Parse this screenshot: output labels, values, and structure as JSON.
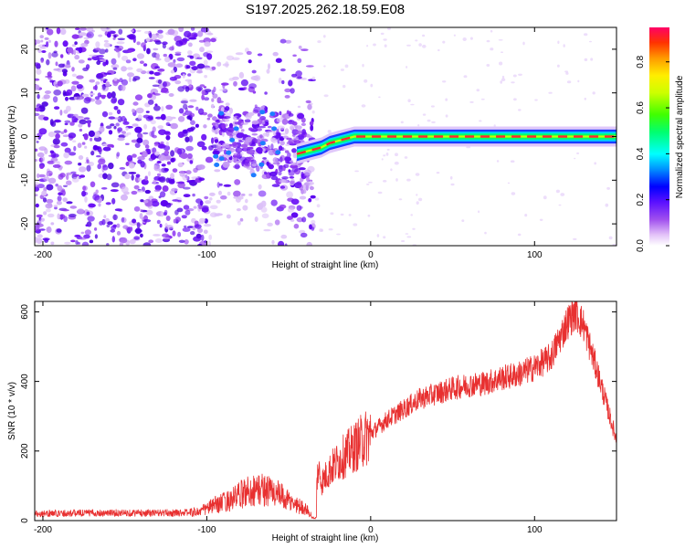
{
  "title": "S197.2025.262.18.59.E08",
  "chart_data": [
    {
      "type": "heatmap",
      "name": "spectrogram",
      "xlabel": "Height of straight line (km)",
      "ylabel": "Frequency (Hz)",
      "xlim": [
        -205,
        150
      ],
      "ylim": [
        -25,
        25
      ],
      "xticks": [
        -200,
        -100,
        0,
        100
      ],
      "yticks": [
        -20,
        -10,
        0,
        10,
        20
      ],
      "colorbar": {
        "label": "Normalized spectral amplitude",
        "range": [
          0,
          0.95
        ],
        "ticks": [
          0.0,
          0.2,
          0.4,
          0.6,
          0.8
        ],
        "colors": [
          "#ffffff",
          "#d9a6f7",
          "#8a2be2",
          "#3b00ff",
          "#0000ff",
          "#00a0ff",
          "#00ffff",
          "#00ff66",
          "#33ff00",
          "#ccff00",
          "#ffff00",
          "#ffaa00",
          "#ff3300",
          "#ff0066"
        ]
      },
      "ridge": {
        "x": [
          -45,
          -40,
          -35,
          -30,
          -25,
          -20,
          -15,
          -10,
          -5,
          0,
          10,
          20,
          40,
          60,
          80,
          100,
          120,
          150
        ],
        "freq": [
          -4,
          -3.5,
          -3,
          -2.5,
          -1.5,
          -1,
          -0.5,
          0,
          0,
          0,
          0,
          0,
          0,
          0,
          0,
          0,
          0,
          0
        ]
      }
    },
    {
      "type": "line",
      "name": "snr",
      "xlabel": "Height of straight line (km)",
      "ylabel": "SNR (10 * v/v)",
      "xlim": [
        -205,
        150
      ],
      "ylim": [
        0,
        630
      ],
      "xticks": [
        -200,
        -100,
        0,
        100
      ],
      "yticks": [
        0,
        200,
        400,
        600
      ],
      "series": [
        {
          "name": "SNR",
          "color": "#e83030",
          "x": [
            -205,
            -180,
            -150,
            -120,
            -105,
            -95,
            -85,
            -75,
            -65,
            -58,
            -50,
            -40,
            -35,
            -32,
            -30,
            -25,
            -20,
            -10,
            0,
            10,
            20,
            30,
            40,
            50,
            60,
            70,
            80,
            90,
            100,
            110,
            115,
            120,
            125,
            130,
            140,
            150
          ],
          "y": [
            20,
            22,
            22,
            22,
            25,
            45,
            60,
            85,
            90,
            80,
            55,
            35,
            10,
            150,
            110,
            145,
            170,
            210,
            250,
            290,
            320,
            350,
            365,
            380,
            390,
            395,
            410,
            420,
            440,
            470,
            520,
            570,
            600,
            560,
            400,
            230
          ]
        }
      ]
    }
  ]
}
